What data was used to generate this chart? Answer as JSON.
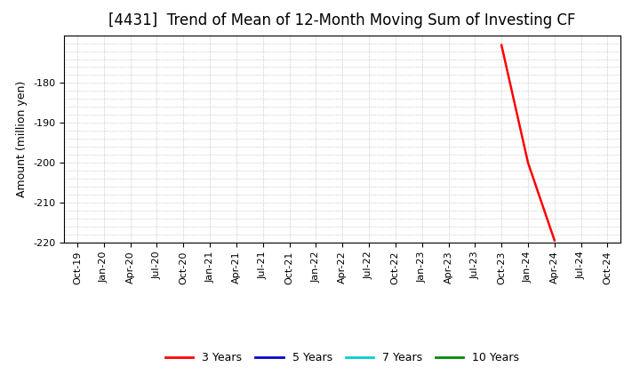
{
  "title": "[4431]  Trend of Mean of 12-Month Moving Sum of Investing CF",
  "ylabel": "Amount (million yen)",
  "ylim": [
    -220,
    -168
  ],
  "yticks": [
    -220,
    -210,
    -200,
    -190,
    -180
  ],
  "background_color": "#ffffff",
  "plot_bg_color": "#ffffff",
  "grid_color": "#aaaaaa",
  "series": {
    "3years": {
      "x": [
        "Oct-23",
        "Jan-24",
        "Apr-24"
      ],
      "y": [
        -170.5,
        -200.0,
        -219.5
      ],
      "color": "#ff0000",
      "label": "3 Years",
      "linewidth": 1.8
    },
    "5years": {
      "x": [],
      "y": [],
      "color": "#0000cc",
      "label": "5 Years",
      "linewidth": 1.8
    },
    "7years": {
      "x": [],
      "y": [],
      "color": "#00cccc",
      "label": "7 Years",
      "linewidth": 1.8
    },
    "10years": {
      "x": [],
      "y": [],
      "color": "#008800",
      "label": "10 Years",
      "linewidth": 1.8
    }
  },
  "xtick_labels": [
    "Oct-19",
    "Jan-20",
    "Apr-20",
    "Jul-20",
    "Oct-20",
    "Jan-21",
    "Apr-21",
    "Jul-21",
    "Oct-21",
    "Jan-22",
    "Apr-22",
    "Jul-22",
    "Oct-22",
    "Jan-23",
    "Apr-23",
    "Jul-23",
    "Oct-23",
    "Jan-24",
    "Apr-24",
    "Jul-24",
    "Oct-24"
  ],
  "title_fontsize": 12,
  "axis_label_fontsize": 9,
  "tick_fontsize": 8,
  "legend_fontsize": 9
}
